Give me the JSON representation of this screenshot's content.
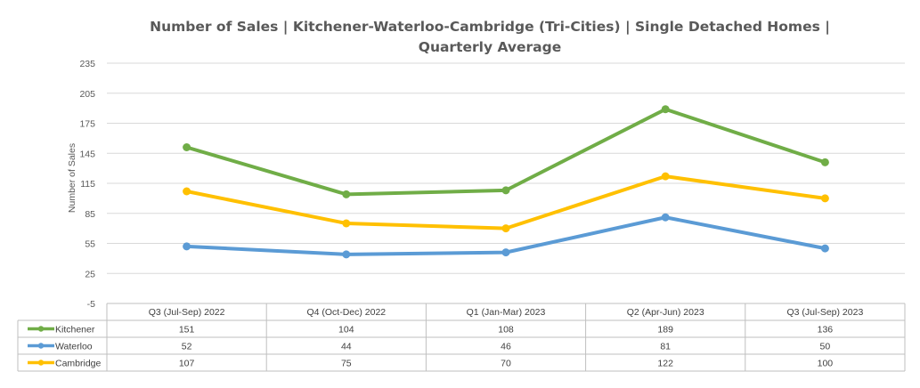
{
  "chart_data": {
    "type": "line",
    "title": "Number of Sales | Kitchener-Waterloo-Cambridge (Tri-Cities) | Single Detached Homes | Quarterly Average",
    "title_lines": [
      "Number of Sales | Kitchener-Waterloo-Cambridge (Tri-Cities) | Single Detached Homes |",
      "Quarterly Average"
    ],
    "xlabel": "",
    "ylabel": "Number of Sales",
    "ylim": [
      -5,
      235
    ],
    "yticks": [
      "235",
      "205",
      "175",
      "145",
      "115",
      "85",
      "55",
      "25",
      "-5"
    ],
    "grid": true,
    "legend": "data-table-left",
    "categories": [
      "Q3 (Jul-Sep) 2022",
      "Q4 (Oct-Dec) 2022",
      "Q1 (Jan-Mar) 2023",
      "Q2 (Apr-Jun) 2023",
      "Q3 (Jul-Sep) 2023"
    ],
    "series": [
      {
        "name": "Kitchener",
        "color": "#70ad47",
        "values": [
          151,
          104,
          108,
          189,
          136
        ]
      },
      {
        "name": "Waterloo",
        "color": "#5b9bd5",
        "values": [
          52,
          44,
          46,
          81,
          50
        ]
      },
      {
        "name": "Cambridge",
        "color": "#ffc000",
        "values": [
          107,
          75,
          70,
          122,
          100
        ]
      }
    ]
  }
}
